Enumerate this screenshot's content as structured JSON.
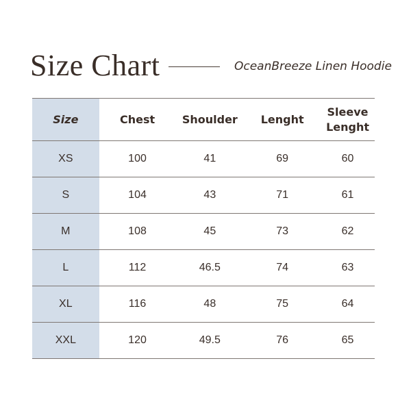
{
  "header": {
    "title": "Size Chart",
    "subtitle": "OceanBreeze Linen Hoodie"
  },
  "table": {
    "columns": [
      "Size",
      "Chest",
      "Shoulder",
      "Lenght",
      "Sleeve Lenght"
    ],
    "rows": [
      [
        "XS",
        "100",
        "41",
        "69",
        "60"
      ],
      [
        "S",
        "104",
        "43",
        "71",
        "61"
      ],
      [
        "M",
        "108",
        "45",
        "73",
        "62"
      ],
      [
        "L",
        "112",
        "46.5",
        "74",
        "63"
      ],
      [
        "XL",
        "116",
        "48",
        "75",
        "64"
      ],
      [
        "XXL",
        "120",
        "49.5",
        "76",
        "65"
      ]
    ]
  },
  "colors": {
    "size_column": "#d3dde9",
    "text": "#3a2e28",
    "rule": "#7e7672"
  }
}
